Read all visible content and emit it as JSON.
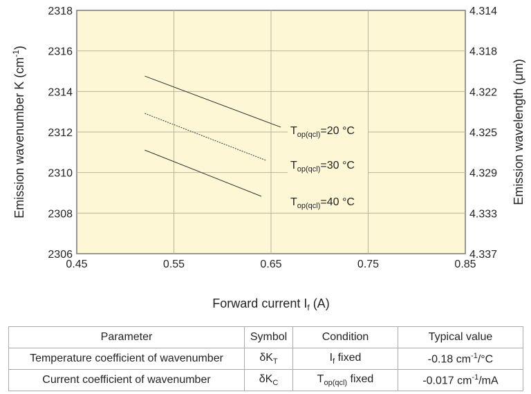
{
  "chart_data": {
    "type": "line",
    "xlabel": "Forward current I",
    "xlabel_sub": "f",
    "xlabel_unit": "(A)",
    "ylabel": "Emission wavenumber K (cm",
    "ylabel_sup": "-1",
    "ylabel_end": ")",
    "y2label": "Emission wavelength (μm)",
    "xlim": [
      0.45,
      0.85
    ],
    "ylim": [
      2306,
      2318
    ],
    "xticks": [
      "0.45",
      "0.55",
      "0.65",
      "0.75",
      "0.85"
    ],
    "yticks": [
      "2306",
      "2308",
      "2310",
      "2312",
      "2314",
      "2316",
      "2318"
    ],
    "y2ticks": [
      "4.337",
      "4.333",
      "4.329",
      "4.325",
      "4.322",
      "4.318",
      "4.314"
    ],
    "grid": true,
    "background": "#fdf7d6",
    "series": [
      {
        "name": "T",
        "sub": "op(qcl)",
        "suffix": "=20 °C",
        "style": "solid",
        "x": [
          0.52,
          0.66
        ],
        "y": [
          2314.76,
          2312.24
        ]
      },
      {
        "name": "T",
        "sub": "op(qcl)",
        "suffix": "=30 °C",
        "style": "dotted",
        "x": [
          0.52,
          0.645
        ],
        "y": [
          2312.92,
          2310.6
        ]
      },
      {
        "name": "T",
        "sub": "op(qcl)",
        "suffix": "=40 °C",
        "style": "solid",
        "x": [
          0.52,
          0.64
        ],
        "y": [
          2311.11,
          2308.83
        ]
      }
    ]
  },
  "table": {
    "headers": [
      "Parameter",
      "Symbol",
      "Condition",
      "Typical value"
    ],
    "rows": [
      {
        "param": "Temperature coefficient of wavenumber",
        "sym": "δK",
        "sym_sub": "T",
        "cond": "I",
        "cond_sub": "f",
        "cond_end": " fixed",
        "val": "-0.18 cm",
        "val_sup": "-1",
        "val_end": "/°C"
      },
      {
        "param": "Current coefficient of wavenumber",
        "sym": "δK",
        "sym_sub": "C",
        "cond": "T",
        "cond_sub": "op(qcl)",
        "cond_end": " fixed",
        "val": "-0.017 cm",
        "val_sup": "-1",
        "val_end": "/mA"
      }
    ]
  }
}
